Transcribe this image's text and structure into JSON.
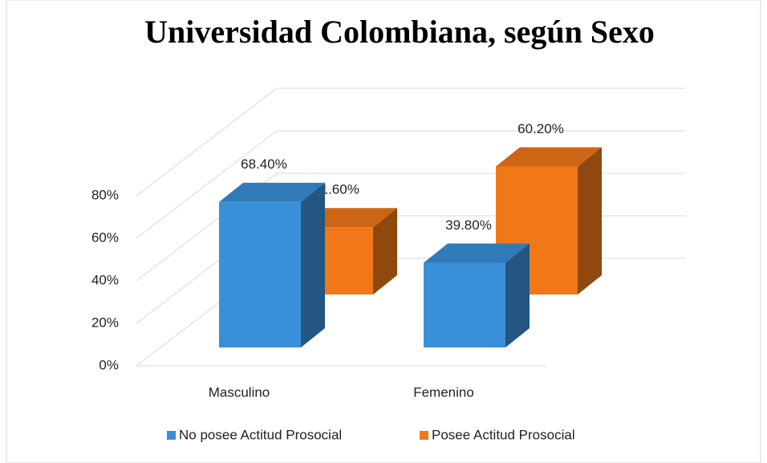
{
  "chart_data": {
    "type": "bar3d",
    "title": "Universidad Colombiana, según Sexo",
    "categories": [
      "Masculino",
      "Femenino"
    ],
    "series": [
      {
        "name": "No posee Actitud Prosocial",
        "color": "#3a8fd9",
        "values": [
          68.4,
          39.8
        ],
        "value_labels": [
          "68.40%",
          "39.80%"
        ]
      },
      {
        "name": "Posee Actitud Prosocial",
        "color": "#f07818",
        "values": [
          31.6,
          60.2
        ],
        "value_labels": [
          "31.60%",
          "60.20%"
        ]
      }
    ],
    "ylim": [
      0,
      80
    ],
    "yticks": [
      {
        "value": 0,
        "label": "0%"
      },
      {
        "value": 20,
        "label": "20%"
      },
      {
        "value": 40,
        "label": "40%"
      },
      {
        "value": 60,
        "label": "60%"
      },
      {
        "value": 80,
        "label": "80%"
      }
    ],
    "grid": true,
    "legend": "bottom"
  }
}
